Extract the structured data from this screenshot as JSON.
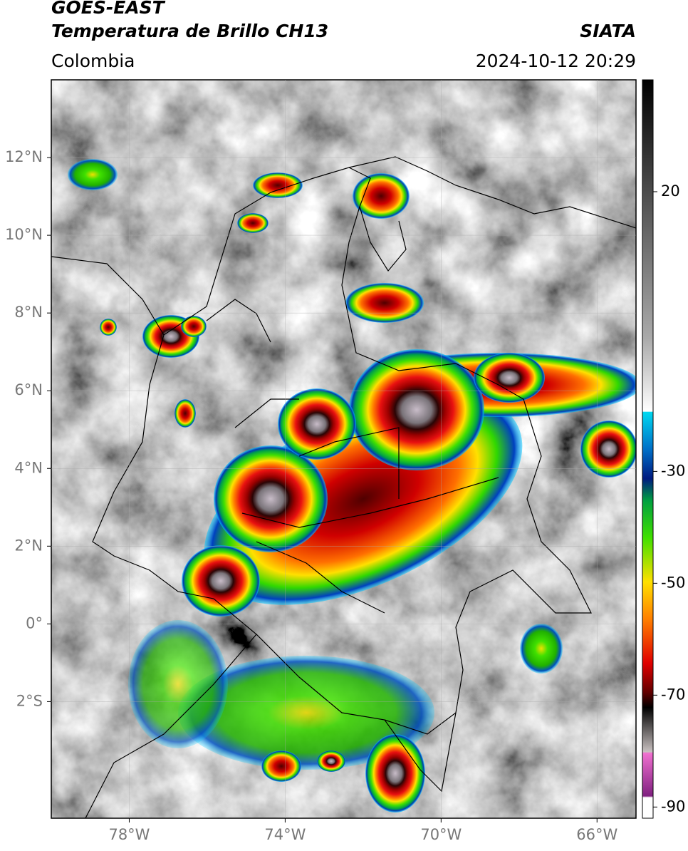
{
  "header": {
    "title": "GOES-EAST",
    "subtitle": "Temperatura de Brillo CH13",
    "region": "Colombia",
    "source": "SIATA",
    "timestamp": "2024-10-12 20:29"
  },
  "map": {
    "xlim": [
      -80,
      -65
    ],
    "ylim": [
      -5,
      14
    ],
    "xticks": [
      {
        "value": -78,
        "label": "78°W"
      },
      {
        "value": -74,
        "label": "74°W"
      },
      {
        "value": -70,
        "label": "70°W"
      },
      {
        "value": -66,
        "label": "66°W"
      }
    ],
    "yticks": [
      {
        "value": 12,
        "label": "12°N"
      },
      {
        "value": 10,
        "label": "10°N"
      },
      {
        "value": 8,
        "label": "8°N"
      },
      {
        "value": 6,
        "label": "6°N"
      },
      {
        "value": 4,
        "label": "4°N"
      },
      {
        "value": 2,
        "label": "2°N"
      },
      {
        "value": 0,
        "label": "0°"
      },
      {
        "value": -2,
        "label": "2°S"
      }
    ]
  },
  "colorbar": {
    "lim": [
      -92,
      40
    ],
    "ticks": [
      20,
      -30,
      -50,
      -70,
      -90
    ]
  }
}
